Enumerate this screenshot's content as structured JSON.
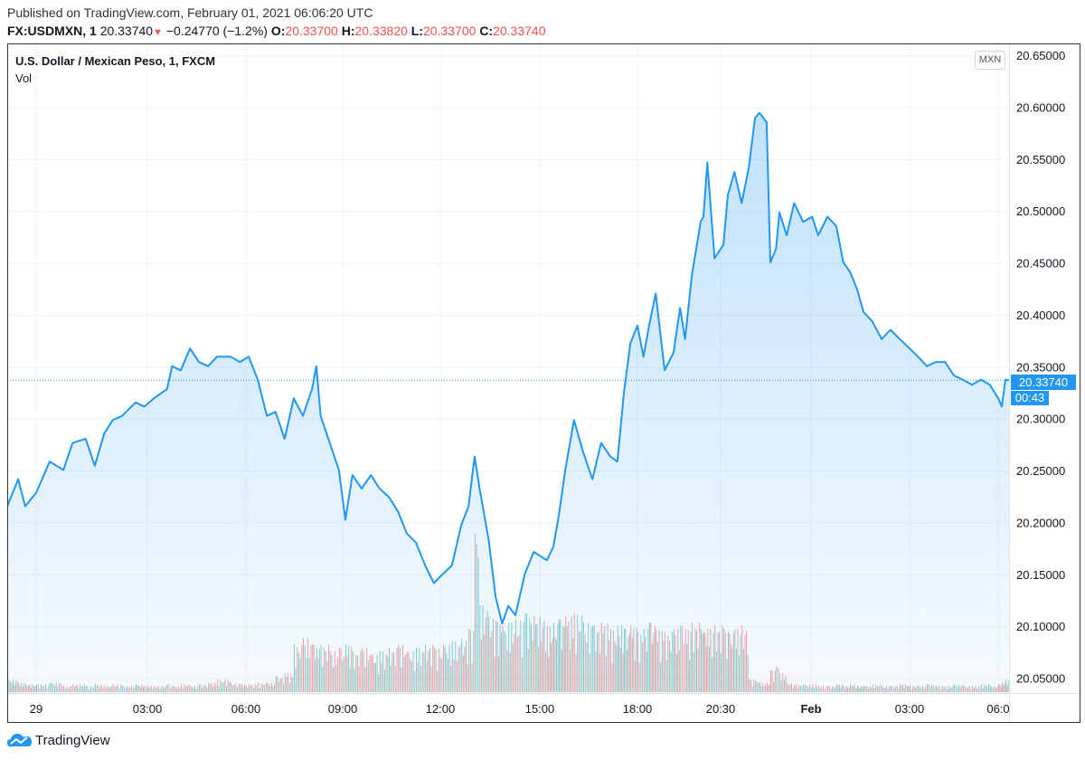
{
  "header": {
    "published": "Published on TradingView.com, February 01, 2021 06:06:20 UTC",
    "symbol": "FX:USDMXN, 1",
    "last": "20.33740",
    "change_icon": "triangle-down-icon",
    "change": "−0.24770 (−1.2%)",
    "ohlc": [
      {
        "label": "O:",
        "value": "20.33700"
      },
      {
        "label": "H:",
        "value": "20.33820"
      },
      {
        "label": "L:",
        "value": "20.33700"
      },
      {
        "label": "C:",
        "value": "20.33740"
      }
    ]
  },
  "legend": {
    "title": "U.S. Dollar / Mexican Peso, 1, FXCM",
    "vol": "Vol"
  },
  "currency_button": "MXN",
  "last_price_label": "20.33740",
  "countdown": "00:43",
  "footer": {
    "brand": "TradingView"
  },
  "colors": {
    "line": "#2196f3",
    "vol_up": "#26a69a",
    "vol_down": "#ef5350",
    "down": "#ef5350"
  },
  "chart_data": {
    "type": "area",
    "ylim": [
      20.03,
      20.66
    ],
    "y_ticks": [
      "20.65000",
      "20.60000",
      "20.55000",
      "20.50000",
      "20.45000",
      "20.40000",
      "20.35000",
      "20.30000",
      "20.25000",
      "20.20000",
      "20.15000",
      "20.10000",
      "20.05000"
    ],
    "x_ticks": [
      {
        "label": "29",
        "time": "01-29 00:00"
      },
      {
        "label": "03:00",
        "time": "01-29 03:00"
      },
      {
        "label": "06:00",
        "time": "01-29 06:00"
      },
      {
        "label": "09:00",
        "time": "01-29 09:00"
      },
      {
        "label": "12:00",
        "time": "01-29 12:00"
      },
      {
        "label": "15:00",
        "time": "01-29 15:00"
      },
      {
        "label": "18:00",
        "time": "01-29 18:00"
      },
      {
        "label": "20:30",
        "time": "01-29 20:30"
      },
      {
        "label": "Feb",
        "time": "02-01 00:00",
        "bold": true
      },
      {
        "label": "03:00",
        "time": "02-01 03:00"
      },
      {
        "label": "06:0",
        "time": "02-01 06:00"
      }
    ],
    "last_price": 20.3374,
    "grid": true,
    "series": [
      {
        "type": "area",
        "points": [
          [
            "01-28 23:07",
            20.216,
            8
          ],
          [
            "01-28 23:27",
            20.242,
            6
          ],
          [
            "01-28 23:40",
            20.216,
            5
          ],
          [
            "01-29 00:00",
            20.229,
            5
          ],
          [
            "01-29 00:22",
            20.259,
            6
          ],
          [
            "01-29 00:44",
            20.251,
            4
          ],
          [
            "01-29 00:59",
            20.277,
            5
          ],
          [
            "01-29 01:20",
            20.281,
            4
          ],
          [
            "01-29 01:35",
            20.255,
            5
          ],
          [
            "01-29 01:50",
            20.286,
            4
          ],
          [
            "01-29 02:04",
            20.299,
            5
          ],
          [
            "01-29 02:19",
            20.303,
            4
          ],
          [
            "01-29 02:41",
            20.316,
            5
          ],
          [
            "01-29 02:55",
            20.312,
            4
          ],
          [
            "01-29 03:12",
            20.32,
            4
          ],
          [
            "01-29 03:36",
            20.329,
            5
          ],
          [
            "01-29 03:45",
            20.351,
            4
          ],
          [
            "01-29 04:01",
            20.347,
            5
          ],
          [
            "01-29 04:18",
            20.368,
            4
          ],
          [
            "01-29 04:34",
            20.355,
            5
          ],
          [
            "01-29 04:51",
            20.351,
            6
          ],
          [
            "01-29 05:07",
            20.36,
            8
          ],
          [
            "01-29 05:32",
            20.36,
            6
          ],
          [
            "01-29 05:49",
            20.355,
            5
          ],
          [
            "01-29 06:05",
            20.36,
            5
          ],
          [
            "01-29 06:22",
            20.338,
            6
          ],
          [
            "01-29 06:39",
            20.303,
            6
          ],
          [
            "01-29 06:55",
            20.307,
            10
          ],
          [
            "01-29 07:12",
            20.281,
            12
          ],
          [
            "01-29 07:29",
            20.32,
            30
          ],
          [
            "01-29 07:46",
            20.303,
            34
          ],
          [
            "01-29 08:03",
            20.329,
            30
          ],
          [
            "01-29 08:11",
            20.351,
            28
          ],
          [
            "01-29 08:19",
            20.303,
            30
          ],
          [
            "01-29 08:36",
            20.277,
            26
          ],
          [
            "01-29 08:53",
            20.251,
            28
          ],
          [
            "01-29 09:05",
            20.203,
            30
          ],
          [
            "01-29 09:18",
            20.246,
            26
          ],
          [
            "01-29 09:35",
            20.233,
            28
          ],
          [
            "01-29 09:52",
            20.246,
            24
          ],
          [
            "01-29 10:08",
            20.233,
            26
          ],
          [
            "01-29 10:25",
            20.225,
            28
          ],
          [
            "01-29 10:42",
            20.211,
            30
          ],
          [
            "01-29 10:58",
            20.19,
            26
          ],
          [
            "01-29 11:15",
            20.181,
            28
          ],
          [
            "01-29 11:32",
            20.159,
            30
          ],
          [
            "01-29 11:48",
            20.142,
            28
          ],
          [
            "01-29 12:05",
            20.151,
            30
          ],
          [
            "01-29 12:21",
            20.159,
            32
          ],
          [
            "01-29 12:38",
            20.198,
            34
          ],
          [
            "01-29 12:51",
            20.216,
            40
          ],
          [
            "01-29 13:02",
            20.264,
            100
          ],
          [
            "01-29 13:11",
            20.233,
            55
          ],
          [
            "01-29 13:27",
            20.185,
            48
          ],
          [
            "01-29 13:40",
            20.129,
            45
          ],
          [
            "01-29 13:52",
            20.103,
            42
          ],
          [
            "01-29 14:03",
            20.12,
            44
          ],
          [
            "01-29 14:16",
            20.111,
            46
          ],
          [
            "01-29 14:33",
            20.151,
            50
          ],
          [
            "01-29 14:49",
            20.172,
            48
          ],
          [
            "01-29 15:13",
            20.164,
            42
          ],
          [
            "01-29 15:25",
            20.177,
            44
          ],
          [
            "01-29 15:35",
            20.207,
            46
          ],
          [
            "01-29 15:47",
            20.251,
            48
          ],
          [
            "01-29 16:03",
            20.299,
            50
          ],
          [
            "01-29 16:20",
            20.268,
            44
          ],
          [
            "01-29 16:37",
            20.242,
            42
          ],
          [
            "01-29 16:53",
            20.277,
            44
          ],
          [
            "01-29 17:10",
            20.264,
            40
          ],
          [
            "01-29 17:23",
            20.259,
            42
          ],
          [
            "01-29 17:35",
            20.325,
            40
          ],
          [
            "01-29 17:47",
            20.373,
            42
          ],
          [
            "01-29 18:00",
            20.39,
            38
          ],
          [
            "01-29 18:11",
            20.36,
            40
          ],
          [
            "01-29 18:21",
            20.39,
            44
          ],
          [
            "01-29 18:33",
            20.421,
            40
          ],
          [
            "01-29 18:49",
            20.347,
            38
          ],
          [
            "01-29 19:05",
            20.364,
            40
          ],
          [
            "01-29 19:17",
            20.407,
            42
          ],
          [
            "01-29 19:26",
            20.377,
            40
          ],
          [
            "01-29 19:38",
            20.438,
            44
          ],
          [
            "01-29 19:54",
            20.49,
            40
          ],
          [
            "01-29 19:59",
            20.495,
            38
          ],
          [
            "01-29 20:06",
            20.547,
            40
          ],
          [
            "01-29 20:19",
            20.455,
            42
          ],
          [
            "01-29 20:35",
            20.468,
            40
          ],
          [
            "01-29 20:43",
            20.516,
            38
          ],
          [
            "01-29 20:55",
            20.538,
            40
          ],
          [
            "01-29 21:08",
            20.508,
            42
          ],
          [
            "01-29 21:21",
            20.543,
            8
          ],
          [
            "01-29 21:32",
            20.59,
            7
          ],
          [
            "01-29 21:40",
            20.595,
            6
          ],
          [
            "01-29 21:53",
            20.586,
            6
          ],
          [
            "01-31 22:48",
            20.451,
            14
          ],
          [
            "01-31 22:58",
            20.464,
            16
          ],
          [
            "01-31 23:04",
            20.499,
            12
          ],
          [
            "01-31 23:17",
            20.477,
            6
          ],
          [
            "01-31 23:30",
            20.508,
            5
          ],
          [
            "01-31 23:46",
            20.49,
            5
          ],
          [
            "02-01 00:02",
            20.495,
            5
          ],
          [
            "02-01 00:13",
            20.477,
            4
          ],
          [
            "02-01 00:30",
            20.495,
            4
          ],
          [
            "02-01 00:46",
            20.486,
            5
          ],
          [
            "02-01 00:59",
            20.451,
            4
          ],
          [
            "02-01 01:11",
            20.442,
            5
          ],
          [
            "02-01 01:24",
            20.425,
            4
          ],
          [
            "02-01 01:36",
            20.403,
            4
          ],
          [
            "02-01 01:52",
            20.394,
            5
          ],
          [
            "02-01 02:09",
            20.377,
            4
          ],
          [
            "02-01 02:25",
            20.386,
            4
          ],
          [
            "02-01 02:42",
            20.377,
            5
          ],
          [
            "02-01 03:00",
            20.368,
            4
          ],
          [
            "02-01 03:17",
            20.36,
            4
          ],
          [
            "02-01 03:35",
            20.351,
            5
          ],
          [
            "02-01 03:53",
            20.355,
            4
          ],
          [
            "02-01 04:12",
            20.355,
            4
          ],
          [
            "02-01 04:30",
            20.342,
            5
          ],
          [
            "02-01 04:48",
            20.338,
            4
          ],
          [
            "02-01 05:07",
            20.333,
            4
          ],
          [
            "02-01 05:25",
            20.338,
            5
          ],
          [
            "02-01 05:43",
            20.333,
            4
          ],
          [
            "02-01 06:00",
            20.32,
            5
          ],
          [
            "02-01 06:02",
            20.312,
            6
          ],
          [
            "02-01 06:04",
            20.338,
            8
          ],
          [
            "02-01 06:06",
            20.3374,
            6
          ]
        ]
      }
    ]
  }
}
